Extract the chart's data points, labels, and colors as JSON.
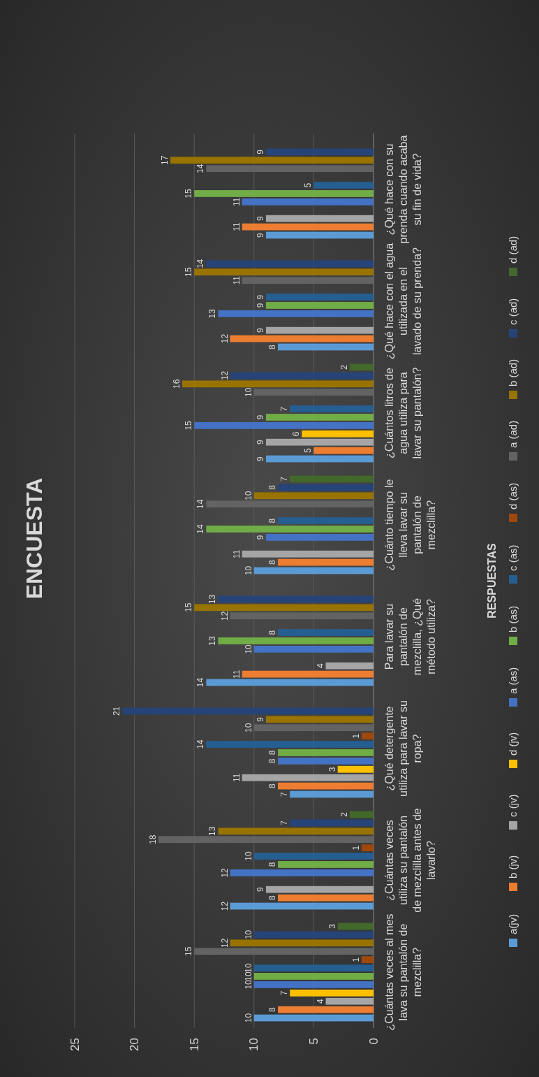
{
  "chart_data": {
    "type": "bar",
    "orientation": "horizontal",
    "title": "ENCUESTA",
    "ylabel": "RESPUESTAS",
    "categories": [
      "¿Qué hace con su prenda cuando acaba su fin de vida?",
      "¿Qué hace con el agua utilizada en el lavado de su prenda?",
      "¿Cuántos litros de agua utiliza para lavar su pantalón?",
      "¿Cuánto tiempo le lleva lavar su pantalón de mezclilla?",
      "Para lavar su pantalón de mezclilla, ¿Qué método utiliza?",
      "¿Qué detergente utiliza para lavar su ropa?",
      "¿Cuántas veces utiliza su pantalón de mezclilla antes de lavarlo?",
      "¿Cuántas veces al mes lava su pantalón de mezclilla?"
    ],
    "series": [
      {
        "name": "a(jv)",
        "color": "#5b9bd5",
        "values": [
          9,
          8,
          9,
          10,
          14,
          7,
          12,
          10
        ]
      },
      {
        "name": "b (jv)",
        "color": "#ed7d31",
        "values": [
          11,
          12,
          5,
          8,
          11,
          8,
          8,
          8
        ]
      },
      {
        "name": "c (jv)",
        "color": "#a5a5a5",
        "values": [
          9,
          9,
          9,
          11,
          4,
          11,
          9,
          4
        ]
      },
      {
        "name": "d (jv)",
        "color": "#ffc000",
        "values": [
          null,
          null,
          6,
          null,
          null,
          3,
          null,
          7
        ]
      },
      {
        "name": "a (as)",
        "color": "#4472c4",
        "values": [
          11,
          13,
          15,
          9,
          10,
          8,
          12,
          10
        ]
      },
      {
        "name": "b (as)",
        "color": "#70ad47",
        "values": [
          15,
          9,
          9,
          14,
          13,
          8,
          8,
          10
        ]
      },
      {
        "name": "c (as)",
        "color": "#255e91",
        "values": [
          5,
          9,
          7,
          8,
          8,
          14,
          10,
          10
        ]
      },
      {
        "name": "d (as)",
        "color": "#9e480e",
        "values": [
          null,
          null,
          null,
          null,
          null,
          1,
          1,
          1
        ]
      },
      {
        "name": "a (ad)",
        "color": "#636363",
        "values": [
          14,
          11,
          10,
          14,
          12,
          10,
          18,
          15
        ]
      },
      {
        "name": "b (ad)",
        "color": "#997300",
        "values": [
          17,
          15,
          16,
          10,
          15,
          9,
          13,
          12
        ]
      },
      {
        "name": "c (ad)",
        "color": "#264478",
        "values": [
          9,
          14,
          12,
          8,
          13,
          21,
          7,
          10
        ]
      },
      {
        "name": "d (ad)",
        "color": "#43682b",
        "values": [
          null,
          null,
          2,
          7,
          null,
          null,
          2,
          3
        ]
      }
    ],
    "xlim": [
      25,
      0
    ],
    "xticks": [
      25,
      20,
      15,
      10,
      5,
      0
    ],
    "grid": "x",
    "legend": "right",
    "data_labels": true
  }
}
